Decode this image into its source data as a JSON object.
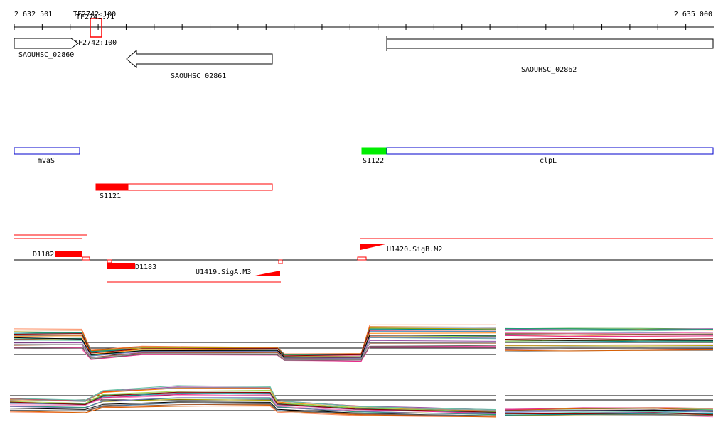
{
  "ruler": {
    "start_label": "2 632 501",
    "end_label": "2 635 000"
  },
  "tf_labels": {
    "top1": "TF2742:100",
    "top2": "TF2741:71",
    "bottom": "TF2742:100"
  },
  "genes": {
    "g1": "SAOUHSC_02860",
    "g2": "SAOUHSC_02861",
    "g3": "SAOUHSC_02862"
  },
  "operons": {
    "mvas": "mvaS",
    "s1122": "S1122",
    "clpl": "clpL",
    "s1121": "S1121"
  },
  "features": {
    "d1182": "D1182",
    "d1183": "D1183",
    "u1419": "U1419.SigA.M3",
    "u1420": "U1420.SigB.M2"
  },
  "colors": {
    "red": "#ff0000",
    "green": "#00ee00",
    "blue": "#0000cc",
    "black": "#000000"
  }
}
